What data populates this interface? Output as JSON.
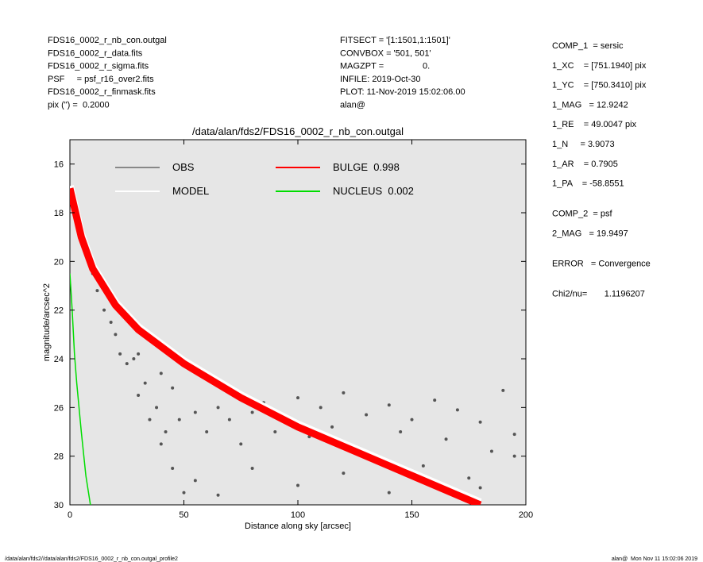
{
  "header": {
    "left": [
      "FDS16_0002_r_nb_con.outgal",
      "FDS16_0002_r_data.fits",
      "FDS16_0002_r_sigma.fits",
      "PSF     = psf_r16_over2.fits",
      "FDS16_0002_r_finmask.fits",
      "pix (\") =  0.2000"
    ],
    "middle": [
      "FITSECT = '[1:1501,1:1501]'",
      "CONVBOX = '501, 501'",
      "MAGZPT =                0.",
      "INFILE: 2019-Oct-30",
      "PLOT: 11-Nov-2019 15:02:06.00",
      "alan@"
    ]
  },
  "params": [
    {
      "text": "COMP_1  = sersic",
      "gap": false
    },
    {
      "text": "1_XC    = [751.1940] pix",
      "gap": false
    },
    {
      "text": "1_YC    = [750.3410] pix",
      "gap": false
    },
    {
      "text": "1_MAG   = 12.9242",
      "gap": false
    },
    {
      "text": "1_RE    = 49.0047 pix",
      "gap": false
    },
    {
      "text": "1_N     = 3.9073",
      "gap": false
    },
    {
      "text": "1_AR    = 0.7905",
      "gap": false
    },
    {
      "text": "1_PA    = -58.8551",
      "gap": false
    },
    {
      "text": "COMP_2  = psf",
      "gap": true
    },
    {
      "text": "2_MAG   = 19.9497",
      "gap": false
    },
    {
      "text": "ERROR   = Convergence",
      "gap": true
    },
    {
      "text": "Chi2/nu=       1.1196207",
      "gap": true
    }
  ],
  "footer": {
    "left": "/data/alan/fds2//data/alan/fds2/FDS16_0002_r_nb_con.outgal_profile2",
    "right": "alan@  Mon Nov 11 15:02:06 2019"
  },
  "chart_data": {
    "type": "scatter",
    "title": "/data/alan/fds2/FDS16_0002_r_nb_con.outgal",
    "xlabel": "Distance along sky [arcsec]",
    "ylabel": "magnitude/arcsec^2",
    "xlim": [
      0,
      200
    ],
    "xticks": [
      0,
      50,
      100,
      150,
      200
    ],
    "ylim": [
      30,
      15
    ],
    "yticks": [
      16,
      18,
      20,
      22,
      24,
      26,
      28,
      30
    ],
    "series": [
      {
        "name": "OBS",
        "color": "#555555",
        "mode": "markers",
        "x": [
          5,
          8,
          10,
          12,
          15,
          18,
          20,
          22,
          25,
          28,
          30,
          33,
          35,
          38,
          40,
          42,
          45,
          48,
          50,
          55,
          60,
          65,
          70,
          75,
          80,
          85,
          90,
          95,
          100,
          105,
          110,
          115,
          120,
          125,
          130,
          135,
          140,
          145,
          150,
          155,
          160,
          165,
          170,
          175,
          180,
          185,
          190,
          195,
          45,
          55,
          65,
          80,
          100,
          120,
          140,
          160,
          180,
          195,
          30,
          40
        ],
        "values": [
          19.2,
          20,
          20.5,
          21.2,
          22,
          22.5,
          23,
          23.8,
          24.2,
          24,
          25.5,
          25,
          26.5,
          26,
          27.5,
          27,
          28.5,
          26.5,
          29.5,
          26.2,
          27,
          26,
          26.5,
          27.5,
          26.2,
          25.8,
          27,
          26.4,
          25.6,
          27.2,
          26,
          26.8,
          25.4,
          27.6,
          26.3,
          28.2,
          25.9,
          27,
          26.5,
          28.4,
          25.7,
          27.3,
          26.1,
          28.9,
          26.6,
          27.8,
          25.3,
          27.1,
          25.2,
          29,
          29.6,
          28.5,
          29.2,
          28.7,
          29.5,
          29,
          29.3,
          28,
          23.8,
          24.6
        ]
      },
      {
        "name": "MODEL",
        "color": "#ffffff",
        "mode": "lines",
        "x": [
          0,
          5,
          10,
          20,
          30,
          50,
          75,
          100,
          125,
          150,
          180
        ],
        "values": [
          16.9,
          18.9,
          20.2,
          21.7,
          22.7,
          24.1,
          25.5,
          26.7,
          27.7,
          28.7,
          29.9
        ]
      },
      {
        "name": "BULGE  0.998",
        "color": "#ff0000",
        "mode": "lines",
        "x": [
          0,
          5,
          10,
          20,
          30,
          50,
          75,
          100,
          125,
          150,
          180
        ],
        "values": [
          17,
          19,
          20.3,
          21.8,
          22.8,
          24.2,
          25.6,
          26.8,
          27.8,
          28.8,
          30
        ]
      },
      {
        "name": "NUCLEUS  0.002",
        "color": "#00dd00",
        "mode": "lines",
        "x": [
          0,
          1,
          2,
          3,
          5,
          7,
          9
        ],
        "values": [
          20.5,
          22,
          23.8,
          25,
          27,
          28.8,
          30
        ]
      }
    ]
  }
}
